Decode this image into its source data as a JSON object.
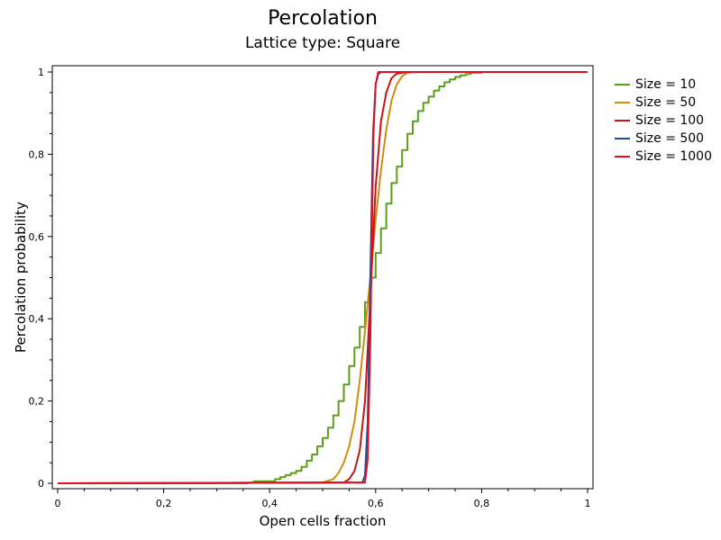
{
  "chart_data": {
    "type": "line",
    "title": "Percolation",
    "subtitle": "Lattice type: Square",
    "xlabel": "Open cells fraction",
    "ylabel": "Percolation probability",
    "xlim": [
      0,
      1
    ],
    "ylim": [
      0,
      1
    ],
    "xticks": [
      "0",
      "0,2",
      "0,4",
      "0,6",
      "0,8",
      "1"
    ],
    "yticks": [
      "0",
      "0,2",
      "0,4",
      "0,6",
      "0,8",
      "1"
    ],
    "grid": false,
    "legend_position": "right",
    "series": [
      {
        "name": "Size = 10",
        "color": "#5a9e1a",
        "step": true,
        "x": [
          0,
          0.36,
          0.37,
          0.41,
          0.42,
          0.43,
          0.44,
          0.45,
          0.46,
          0.47,
          0.48,
          0.49,
          0.5,
          0.51,
          0.52,
          0.53,
          0.54,
          0.55,
          0.56,
          0.57,
          0.58,
          0.59,
          0.6,
          0.61,
          0.62,
          0.63,
          0.64,
          0.65,
          0.66,
          0.67,
          0.68,
          0.69,
          0.7,
          0.71,
          0.72,
          0.73,
          0.74,
          0.75,
          0.76,
          0.77,
          0.78,
          0.8,
          1.0
        ],
        "y": [
          0,
          0.002,
          0.005,
          0.01,
          0.015,
          0.02,
          0.025,
          0.03,
          0.04,
          0.055,
          0.07,
          0.09,
          0.11,
          0.135,
          0.165,
          0.2,
          0.24,
          0.285,
          0.33,
          0.38,
          0.44,
          0.5,
          0.56,
          0.62,
          0.68,
          0.73,
          0.77,
          0.81,
          0.85,
          0.88,
          0.905,
          0.925,
          0.94,
          0.955,
          0.965,
          0.975,
          0.982,
          0.988,
          0.992,
          0.995,
          0.998,
          1.0,
          1.0
        ]
      },
      {
        "name": "Size = 50",
        "color": "#d08c10",
        "step": false,
        "x": [
          0,
          0.5,
          0.52,
          0.53,
          0.54,
          0.55,
          0.56,
          0.57,
          0.58,
          0.59,
          0.6,
          0.61,
          0.62,
          0.63,
          0.64,
          0.65,
          0.66,
          0.68,
          1.0
        ],
        "y": [
          0,
          0.002,
          0.01,
          0.025,
          0.05,
          0.09,
          0.15,
          0.25,
          0.37,
          0.5,
          0.64,
          0.76,
          0.86,
          0.93,
          0.97,
          0.99,
          0.998,
          1.0,
          1.0
        ]
      },
      {
        "name": "Size = 100",
        "color": "#c81414",
        "step": false,
        "x": [
          0,
          0.54,
          0.55,
          0.56,
          0.57,
          0.58,
          0.59,
          0.6,
          0.61,
          0.62,
          0.63,
          0.64,
          0.66,
          1.0
        ],
        "y": [
          0,
          0.002,
          0.01,
          0.03,
          0.08,
          0.2,
          0.45,
          0.72,
          0.88,
          0.95,
          0.985,
          0.996,
          1.0,
          1.0
        ]
      },
      {
        "name": "Size = 500",
        "color": "#1f4e9a",
        "step": false,
        "x": [
          0,
          0.575,
          0.58,
          0.585,
          0.59,
          0.595,
          0.6,
          0.605,
          0.61,
          0.62,
          1.0
        ],
        "y": [
          0,
          0.002,
          0.02,
          0.15,
          0.5,
          0.85,
          0.97,
          0.995,
          1.0,
          1.0,
          1.0
        ]
      },
      {
        "name": "Size = 1000",
        "color": "#e0101e",
        "step": false,
        "x": [
          0,
          0.58,
          0.585,
          0.59,
          0.593,
          0.596,
          0.6,
          0.605,
          1.0
        ],
        "y": [
          0,
          0.002,
          0.06,
          0.35,
          0.62,
          0.85,
          0.97,
          1.0,
          1.0
        ]
      }
    ]
  }
}
